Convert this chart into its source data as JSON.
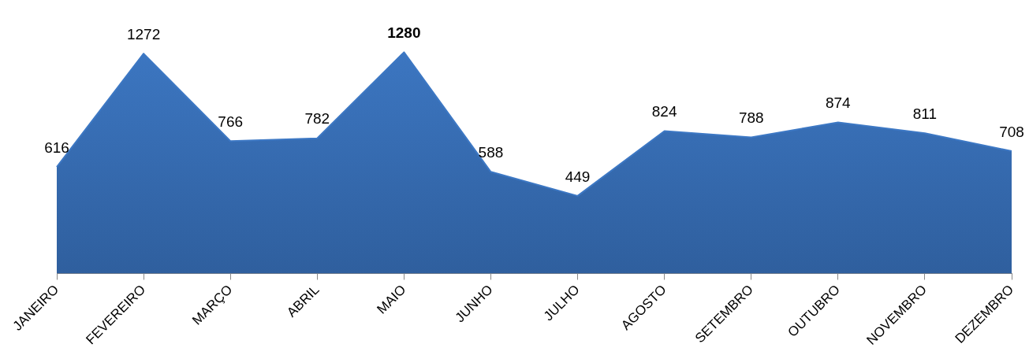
{
  "chart_data": {
    "type": "area",
    "categories": [
      "JANEIRO",
      "FEVEREIRO",
      "MARÇO",
      "ABRIL",
      "MAIO",
      "JUNHO",
      "JULHO",
      "AGOSTO",
      "SETEMBRO",
      "OUTUBRO",
      "NOVEMBRO",
      "DEZEMBRO"
    ],
    "values": [
      616,
      1272,
      766,
      782,
      1280,
      588,
      449,
      824,
      788,
      874,
      811,
      708
    ],
    "color": "#3d78c4",
    "data_labels": true,
    "grid": false,
    "legend": false
  }
}
